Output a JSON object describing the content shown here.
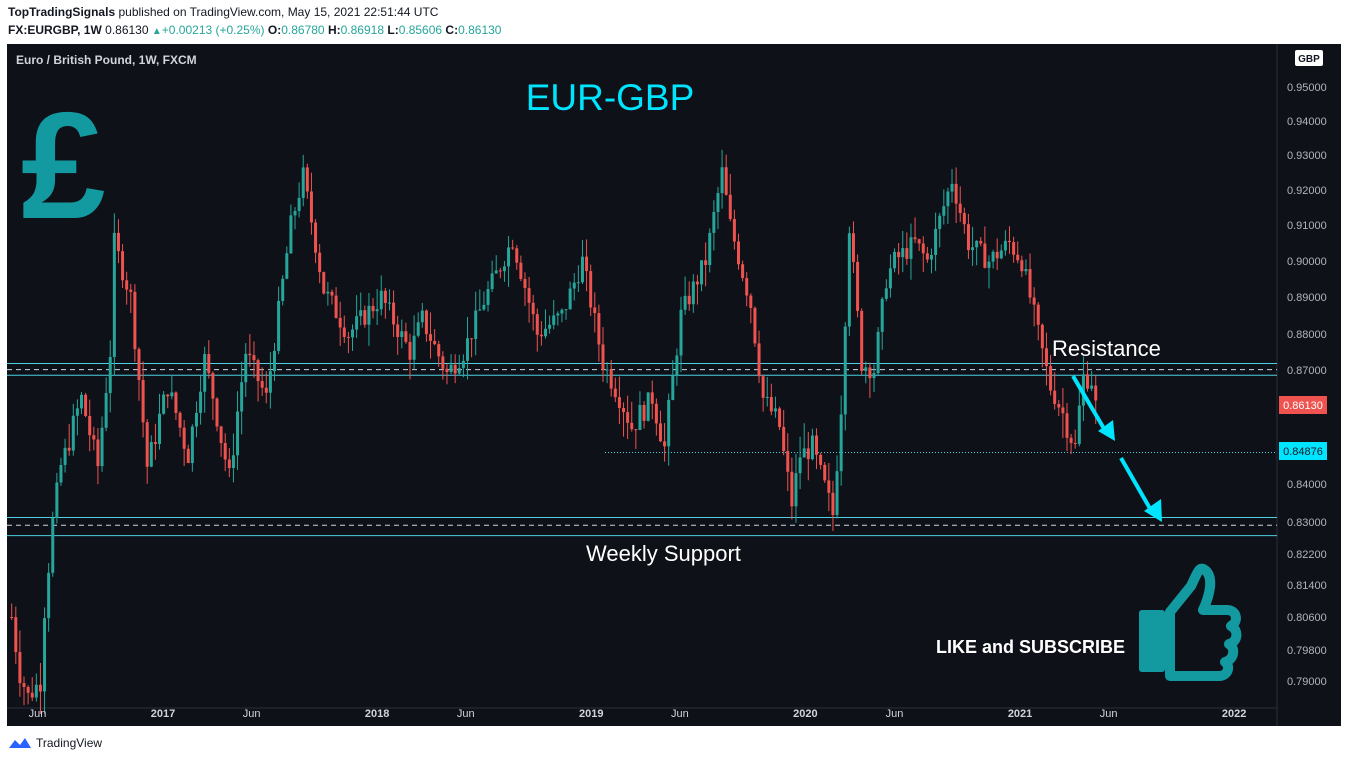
{
  "header": {
    "publisher": "TopTradingSignals",
    "published_text": "published on TradingView.com, May 15, 2021 22:51:44 UTC",
    "symbol": "FX:EURGBP, 1W",
    "last": "0.86130",
    "change": "+0.00213 (+0.25%)",
    "open_label": "O:",
    "open": "0.86780",
    "high_label": "H:",
    "high": "0.86918",
    "low_label": "L:",
    "low": "0.85606",
    "close_label": "C:",
    "close": "0.86130"
  },
  "footer": {
    "brand": "TradingView"
  },
  "colors": {
    "background": "#0f1118",
    "up": "#26a69a",
    "down": "#ef5350",
    "level": "#4dd0e1",
    "title": "#00e5ff",
    "logo": "#139aa0"
  },
  "icons": [
    "pound-sign-icon",
    "thumbs-up-icon",
    "tradingview-logo-icon",
    "up-arrow-icon"
  ],
  "chart_data": {
    "type": "candlestick",
    "legend_text": "Euro / British Pound, 1W, FXCM",
    "title": "EUR-GBP",
    "currency_badge": "GBP",
    "y_ticks": [
      0.79,
      0.798,
      0.806,
      0.814,
      0.822,
      0.83,
      0.84,
      0.85,
      0.86,
      0.87,
      0.88,
      0.89,
      0.9,
      0.91,
      0.92,
      0.93,
      0.94,
      0.95
    ],
    "y_tick_labels": [
      "0.79000",
      "0.79800",
      "0.80600",
      "0.81400",
      "0.82200",
      "0.83000",
      "0.84000",
      "0.85000",
      "0.86000",
      "0.87000",
      "0.88000",
      "0.89000",
      "0.90000",
      "0.91000",
      "0.92000",
      "0.93000",
      "0.94000",
      "0.95000"
    ],
    "x_ticks": [
      "Jun",
      "2017",
      "Jun",
      "2018",
      "Jun",
      "2019",
      "Jun",
      "2020",
      "Jun",
      "2021",
      "Jun",
      "2022"
    ],
    "x_tick_dates": [
      "2016-06-01",
      "2017-01-01",
      "2017-06-01",
      "2018-01-01",
      "2018-06-01",
      "2019-01-01",
      "2019-06-01",
      "2020-01-01",
      "2020-06-01",
      "2021-01-01",
      "2021-06-01",
      "2022-01-01"
    ],
    "x_range": [
      "2016-04-10",
      "2022-03-15"
    ],
    "last_price_label": "0.86130",
    "last_price": 0.8613,
    "marker_label": "0.84876",
    "marker_price": 0.84876,
    "levels": [
      {
        "name": "Resistance",
        "top": 0.8718,
        "mid": 0.8701,
        "bottom": 0.8685
      },
      {
        "name": "Weekly Support",
        "top": 0.8312,
        "mid": 0.8292,
        "bottom": 0.8266
      }
    ],
    "labels": {
      "resistance": "Resistance",
      "support": "Weekly Support",
      "cta": "LIKE and SUBSCRIBE"
    },
    "price_path": [
      [
        "2016-04-18",
        0.806
      ],
      [
        "2016-05-02",
        0.792
      ],
      [
        "2016-05-16",
        0.786
      ],
      [
        "2016-06-06",
        0.79
      ],
      [
        "2016-06-13",
        0.808
      ],
      [
        "2016-06-27",
        0.83
      ],
      [
        "2016-07-11",
        0.845
      ],
      [
        "2016-08-15",
        0.862
      ],
      [
        "2016-09-12",
        0.845
      ],
      [
        "2016-10-03",
        0.875
      ],
      [
        "2016-10-10",
        0.905
      ],
      [
        "2016-11-07",
        0.89
      ],
      [
        "2016-12-05",
        0.845
      ],
      [
        "2017-01-09",
        0.865
      ],
      [
        "2017-02-13",
        0.848
      ],
      [
        "2017-03-13",
        0.873
      ],
      [
        "2017-04-24",
        0.842
      ],
      [
        "2017-05-22",
        0.875
      ],
      [
        "2017-06-26",
        0.862
      ],
      [
        "2017-08-07",
        0.91
      ],
      [
        "2017-08-28",
        0.924
      ],
      [
        "2017-10-02",
        0.892
      ],
      [
        "2017-11-13",
        0.88
      ],
      [
        "2018-01-08",
        0.89
      ],
      [
        "2018-02-26",
        0.875
      ],
      [
        "2018-03-19",
        0.884
      ],
      [
        "2018-04-30",
        0.869
      ],
      [
        "2018-05-28",
        0.875
      ],
      [
        "2018-07-02",
        0.889
      ],
      [
        "2018-08-20",
        0.906
      ],
      [
        "2018-10-01",
        0.88
      ],
      [
        "2018-11-12",
        0.885
      ],
      [
        "2018-12-17",
        0.9
      ],
      [
        "2019-01-21",
        0.872
      ],
      [
        "2019-03-11",
        0.855
      ],
      [
        "2019-04-15",
        0.862
      ],
      [
        "2019-05-06",
        0.85
      ],
      [
        "2019-06-03",
        0.885
      ],
      [
        "2019-07-15",
        0.9
      ],
      [
        "2019-08-12",
        0.925
      ],
      [
        "2019-08-26",
        0.91
      ],
      [
        "2019-09-30",
        0.888
      ],
      [
        "2019-10-21",
        0.862
      ],
      [
        "2019-11-18",
        0.855
      ],
      [
        "2019-12-09",
        0.835
      ],
      [
        "2019-12-23",
        0.848
      ],
      [
        "2020-01-13",
        0.85
      ],
      [
        "2020-02-17",
        0.832
      ],
      [
        "2020-03-02",
        0.86
      ],
      [
        "2020-03-16",
        0.91
      ],
      [
        "2020-04-06",
        0.872
      ],
      [
        "2020-04-27",
        0.87
      ],
      [
        "2020-05-18",
        0.895
      ],
      [
        "2020-06-01",
        0.9
      ],
      [
        "2020-07-06",
        0.905
      ],
      [
        "2020-07-27",
        0.9
      ],
      [
        "2020-09-07",
        0.923
      ],
      [
        "2020-10-05",
        0.905
      ],
      [
        "2020-11-09",
        0.9
      ],
      [
        "2020-12-14",
        0.905
      ],
      [
        "2021-01-04",
        0.9
      ],
      [
        "2021-01-25",
        0.885
      ],
      [
        "2021-02-22",
        0.865
      ],
      [
        "2021-03-15",
        0.858
      ],
      [
        "2021-04-05",
        0.85
      ],
      [
        "2021-04-19",
        0.868
      ],
      [
        "2021-05-03",
        0.867
      ],
      [
        "2021-05-10",
        0.8613
      ]
    ]
  }
}
